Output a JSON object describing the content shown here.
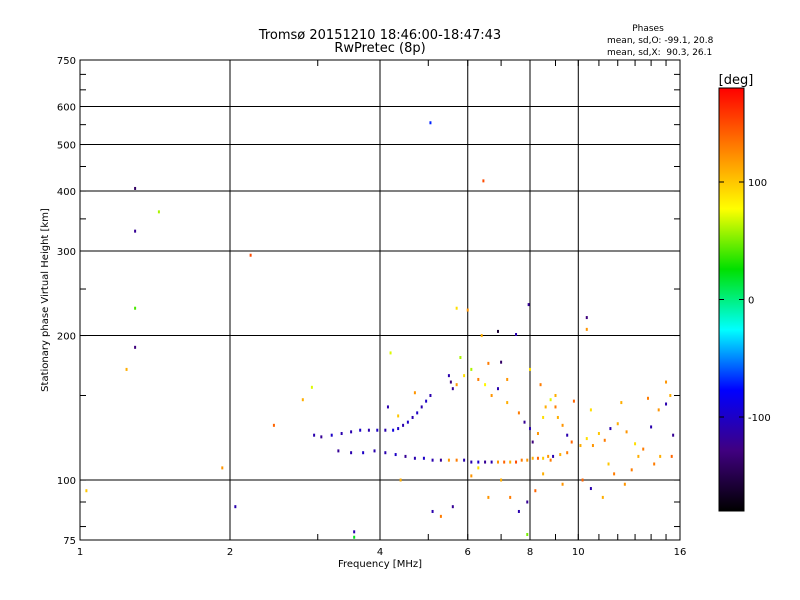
{
  "chart_data": {
    "type": "scatter",
    "title": "Tromsø 20151210 18:46:00-18:47:43",
    "subtitle": "RwPretec (8p)",
    "xlabel": "Frequency [MHz]",
    "ylabel": "Stationary phase Virtual Height [km]",
    "x_scale": "log",
    "y_scale": "log",
    "xlim": [
      1,
      16
    ],
    "ylim": [
      75,
      750
    ],
    "x_ticks": [
      1,
      2,
      4,
      6,
      8,
      10,
      16
    ],
    "y_ticks": [
      75,
      100,
      200,
      300,
      400,
      500,
      600,
      750
    ],
    "x_grid": [
      2,
      4,
      6,
      8,
      10
    ],
    "y_grid": [
      100,
      200,
      300,
      400,
      500,
      600
    ],
    "grid": true,
    "stats": {
      "heading": "Phases",
      "line_o": "mean, sd,O: -99.1, 20.8",
      "line_x": "mean, sd,X:  90.3, 26.1"
    },
    "colorbar": {
      "label": "[deg]",
      "min": -180,
      "max": 180,
      "ticks": [
        100,
        0,
        -100
      ],
      "colors": [
        "#ff0000",
        "#ff8000",
        "#ffff00",
        "#00e000",
        "#00ffff",
        "#0000ff",
        "#400080",
        "#000000"
      ]
    },
    "series": [
      {
        "points": [
          [
            1.03,
            95,
            100
          ],
          [
            1.24,
            170,
            110
          ],
          [
            1.29,
            405,
            -140
          ],
          [
            1.29,
            330,
            -120
          ],
          [
            1.29,
            228,
            40
          ],
          [
            1.29,
            189,
            -130
          ],
          [
            1.44,
            362,
            60
          ],
          [
            1.93,
            106,
            120
          ],
          [
            2.05,
            88,
            -110
          ],
          [
            2.2,
            294,
            150
          ],
          [
            2.45,
            130,
            140
          ],
          [
            2.8,
            147,
            110
          ],
          [
            2.92,
            156,
            70
          ],
          [
            3.55,
            78,
            -110
          ],
          [
            3.55,
            76,
            20
          ],
          [
            5.05,
            555,
            -70
          ],
          [
            6.45,
            420,
            150
          ],
          [
            6.4,
            200,
            110
          ],
          [
            6.9,
            204,
            -160
          ],
          [
            7.0,
            176,
            -140
          ],
          [
            7.5,
            201,
            -110
          ],
          [
            7.95,
            232,
            -120
          ],
          [
            7.9,
            77,
            50
          ],
          [
            10.4,
            206,
            120
          ],
          [
            10.4,
            218,
            -130
          ],
          [
            4.2,
            184,
            70
          ],
          [
            5.7,
            228,
            90
          ],
          [
            6.0,
            226,
            120
          ]
        ]
      },
      {
        "points": [
          [
            2.95,
            124,
            -110
          ],
          [
            3.05,
            123,
            -120
          ],
          [
            3.2,
            124,
            -100
          ],
          [
            3.35,
            125,
            -110
          ],
          [
            3.5,
            126,
            -110
          ],
          [
            3.65,
            127,
            -100
          ],
          [
            3.8,
            127,
            -110
          ],
          [
            3.95,
            127,
            -100
          ],
          [
            4.1,
            127,
            -110
          ],
          [
            4.25,
            127,
            -90
          ],
          [
            4.35,
            128,
            -100
          ],
          [
            4.45,
            130,
            -110
          ],
          [
            4.55,
            132,
            -100
          ],
          [
            4.65,
            135,
            -110
          ],
          [
            4.75,
            138,
            -100
          ],
          [
            4.85,
            142,
            -110
          ],
          [
            4.95,
            146,
            -100
          ],
          [
            5.05,
            150,
            -110
          ],
          [
            3.3,
            115,
            -120
          ],
          [
            3.5,
            114,
            -110
          ],
          [
            3.7,
            114,
            -100
          ],
          [
            3.9,
            115,
            -110
          ],
          [
            4.1,
            114,
            -110
          ],
          [
            4.3,
            113,
            -100
          ],
          [
            4.5,
            112,
            -120
          ],
          [
            4.7,
            111,
            -110
          ],
          [
            4.9,
            111,
            -100
          ],
          [
            5.1,
            110,
            -110
          ],
          [
            5.3,
            110,
            -120
          ],
          [
            5.5,
            110,
            120
          ],
          [
            5.7,
            110,
            130
          ],
          [
            5.9,
            110,
            -110
          ],
          [
            6.1,
            109,
            -110
          ],
          [
            6.3,
            109,
            -100
          ],
          [
            6.5,
            109,
            -120
          ],
          [
            6.7,
            109,
            -110
          ],
          [
            6.9,
            109,
            120
          ],
          [
            7.1,
            109,
            140
          ],
          [
            7.3,
            109,
            110
          ],
          [
            7.5,
            109,
            150
          ],
          [
            7.7,
            110,
            130
          ],
          [
            7.9,
            110,
            120
          ],
          [
            8.1,
            111,
            110
          ],
          [
            8.3,
            111,
            140
          ],
          [
            8.5,
            111,
            100
          ],
          [
            8.7,
            112,
            120
          ],
          [
            8.9,
            112,
            -110
          ],
          [
            9.2,
            113,
            110
          ],
          [
            9.5,
            114,
            130
          ],
          [
            5.5,
            165,
            -110
          ],
          [
            5.55,
            160,
            -130
          ],
          [
            5.6,
            155,
            -120
          ],
          [
            5.7,
            158,
            120
          ],
          [
            5.9,
            165,
            90
          ],
          [
            6.1,
            170,
            60
          ],
          [
            6.3,
            162,
            130
          ],
          [
            6.5,
            158,
            80
          ],
          [
            6.7,
            150,
            120
          ],
          [
            6.9,
            155,
            -110
          ],
          [
            7.2,
            145,
            110
          ],
          [
            7.6,
            138,
            130
          ],
          [
            7.8,
            132,
            -120
          ],
          [
            8.0,
            128,
            -110
          ],
          [
            8.1,
            120,
            -130
          ],
          [
            8.3,
            125,
            120
          ],
          [
            8.5,
            135,
            90
          ],
          [
            8.6,
            142,
            110
          ],
          [
            8.8,
            147,
            70
          ],
          [
            9.0,
            142,
            130
          ],
          [
            9.1,
            135,
            110
          ],
          [
            9.3,
            130,
            120
          ],
          [
            9.5,
            124,
            -110
          ],
          [
            9.7,
            120,
            140
          ],
          [
            10.1,
            118,
            110
          ],
          [
            10.4,
            122,
            90
          ],
          [
            10.7,
            118,
            120
          ],
          [
            11.0,
            125,
            100
          ],
          [
            11.3,
            121,
            130
          ],
          [
            11.6,
            128,
            -110
          ],
          [
            12.0,
            131,
            110
          ],
          [
            12.5,
            126,
            120
          ],
          [
            13.0,
            119,
            90
          ],
          [
            13.5,
            116,
            130
          ],
          [
            14.0,
            129,
            -110
          ],
          [
            14.5,
            140,
            120
          ],
          [
            15.0,
            144,
            -110
          ],
          [
            15.3,
            150,
            110
          ],
          [
            15.5,
            124,
            -120
          ],
          [
            7.0,
            100,
            110
          ],
          [
            7.3,
            92,
            130
          ],
          [
            7.6,
            86,
            -110
          ],
          [
            7.9,
            90,
            -120
          ],
          [
            8.2,
            95,
            140
          ],
          [
            8.5,
            103,
            110
          ],
          [
            8.8,
            110,
            130
          ],
          [
            9.3,
            98,
            120
          ],
          [
            10.2,
            100,
            140
          ],
          [
            10.6,
            96,
            -110
          ],
          [
            11.2,
            92,
            110
          ],
          [
            11.8,
            103,
            130
          ],
          [
            12.4,
            98,
            120
          ],
          [
            13.2,
            112,
            110
          ],
          [
            14.2,
            108,
            130
          ],
          [
            15.4,
            112,
            140
          ],
          [
            5.1,
            86,
            -110
          ],
          [
            5.3,
            84,
            130
          ],
          [
            5.6,
            88,
            -120
          ],
          [
            6.6,
            92,
            120
          ],
          [
            4.4,
            100,
            110
          ],
          [
            6.1,
            102,
            120
          ],
          [
            6.3,
            106,
            90
          ],
          [
            4.35,
            136,
            100
          ],
          [
            4.15,
            142,
            -110
          ],
          [
            4.7,
            152,
            120
          ],
          [
            5.8,
            180,
            60
          ],
          [
            6.6,
            175,
            130
          ],
          [
            7.2,
            162,
            120
          ],
          [
            8.0,
            170,
            90
          ],
          [
            8.4,
            158,
            130
          ],
          [
            9.0,
            150,
            110
          ],
          [
            9.8,
            146,
            140
          ],
          [
            10.6,
            140,
            90
          ],
          [
            12.2,
            145,
            110
          ],
          [
            13.8,
            148,
            130
          ],
          [
            15.0,
            160,
            120
          ],
          [
            11.5,
            108,
            100
          ],
          [
            12.8,
            105,
            130
          ],
          [
            14.6,
            112,
            110
          ]
        ]
      }
    ]
  }
}
